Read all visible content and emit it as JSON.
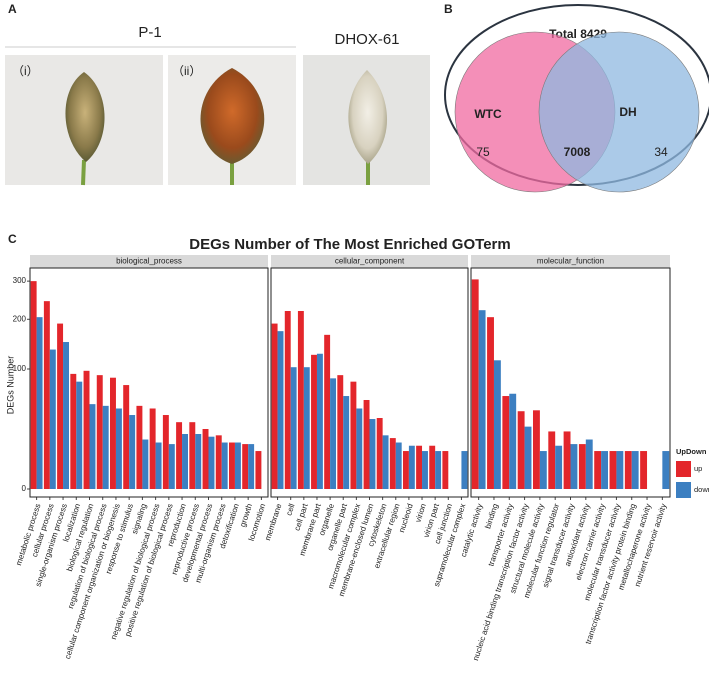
{
  "panels": {
    "a": "A",
    "b": "B",
    "c": "C"
  },
  "photos": {
    "group_label": "P-1",
    "sublabels": [
      "（i）",
      "（ii）"
    ],
    "other_label": "DHOX-61"
  },
  "chart_data": [
    {
      "type": "venn",
      "title": "Total 8429",
      "sets": [
        {
          "name": "WTC",
          "color": "#f06aa0",
          "only": 75
        },
        {
          "name": "DH",
          "color": "#8fb8e0",
          "only": 34
        }
      ],
      "intersection": 7008
    },
    {
      "type": "bar",
      "title": "DEGs Number of The Most Enriched GOTerm",
      "y_label": "DEGs Number",
      "legend_title": "UpDown",
      "y_scale": "sqrt",
      "ylim": [
        0,
        333
      ],
      "yticks": [
        0,
        100,
        200,
        300
      ],
      "series": [
        {
          "name": "up",
          "color": "#e3262b"
        },
        {
          "name": "down",
          "color": "#3c7fc1"
        }
      ],
      "facets": [
        {
          "name": "biological_process",
          "categories": [
            "metabolic process",
            "cellular process",
            "single-organism process",
            "localization",
            "biological regulation",
            "regulation of biological process",
            "cellular component organization or biogenesis",
            "response to stimulus",
            "signaling",
            "negative regulation of biological process",
            "positive regulation of biological process",
            "reproduction",
            "reproductive process",
            "developmental process",
            "multi-organism process",
            "detoxification",
            "growth",
            "locomotion"
          ],
          "values": [
            [
              300,
              245,
              190,
              92,
              97,
              90,
              86,
              75,
              48,
              45,
              38,
              31,
              31,
              25,
              20,
              15,
              14,
              10
            ],
            [
              205,
              135,
              150,
              80,
              50,
              48,
              45,
              38,
              17,
              15,
              14,
              21,
              21,
              19,
              15,
              15,
              14,
              0
            ]
          ]
        },
        {
          "name": "cellular_component",
          "categories": [
            "membrane",
            "cell",
            "cell part",
            "membrane part",
            "organelle",
            "organelle part",
            "macromolecular complex",
            "membrane-enclosed lumen",
            "cytoskeleton",
            "extracellular region",
            "nucleoid",
            "virion",
            "virion part",
            "cell junction",
            "supramolecular complex"
          ],
          "values": [
            [
              190,
              220,
              220,
              125,
              165,
              90,
              80,
              55,
              35,
              18,
              10,
              13,
              13,
              10,
              0
            ],
            [
              173,
              103,
              103,
              127,
              85,
              60,
              45,
              34,
              20,
              15,
              13,
              10,
              10,
              0,
              10
            ]
          ]
        },
        {
          "name": "molecular_function",
          "categories": [
            "catalytic activity",
            "binding",
            "transporter activity",
            "nucleic acid binding transcription factor activity",
            "structural molecule activity",
            "molecular function regulator",
            "signal transducer activity",
            "antioxidant activity",
            "electron carrier activity",
            "molecular transducer activity",
            "transcription factor activity protein binding",
            "metallochaperone activity",
            "nutrient reservoir activity"
          ],
          "values": [
            [
              305,
              205,
              60,
              42,
              43,
              23,
              23,
              14,
              10,
              10,
              10,
              10,
              0
            ],
            [
              222,
              115,
              63,
              27,
              10,
              13,
              14,
              17,
              10,
              10,
              10,
              0,
              10
            ]
          ]
        }
      ]
    }
  ]
}
